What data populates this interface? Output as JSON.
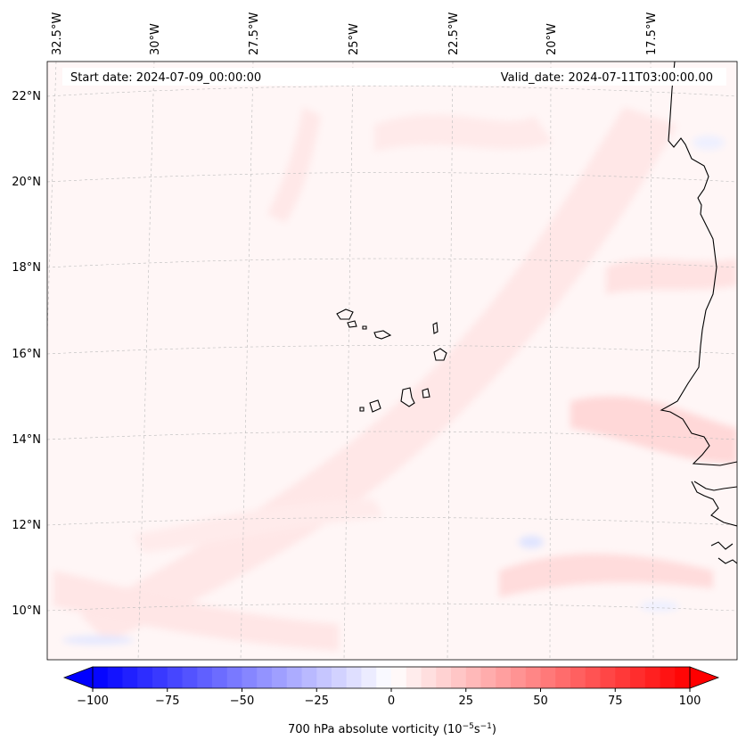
{
  "map": {
    "start_label": "Start date: 2024-07-09_00:00:00",
    "valid_label": "Valid_date: 2024-07-11T03:00:00.00",
    "lon_labels": [
      "32.5°W",
      "30°W",
      "27.5°W",
      "25°W",
      "22.5°W",
      "20°W",
      "17.5°W"
    ],
    "lat_labels": [
      "22°N",
      "20°N",
      "18°N",
      "16°N",
      "14°N",
      "12°N",
      "10°N"
    ]
  },
  "colorbar": {
    "label_main": "700 hPa absolute vorticity (10",
    "label_exp1": "−5",
    "label_mid": "s",
    "label_exp2": "−1",
    "label_end": ")",
    "ticks": [
      "−100",
      "−75",
      "−50",
      "−25",
      "0",
      "25",
      "50",
      "75",
      "100"
    ],
    "tick_values": [
      -100,
      -75,
      -50,
      -25,
      0,
      25,
      50,
      75,
      100
    ],
    "range": [
      -100,
      100
    ],
    "low_color": "#0000ff",
    "high_color": "#ff0000"
  }
}
